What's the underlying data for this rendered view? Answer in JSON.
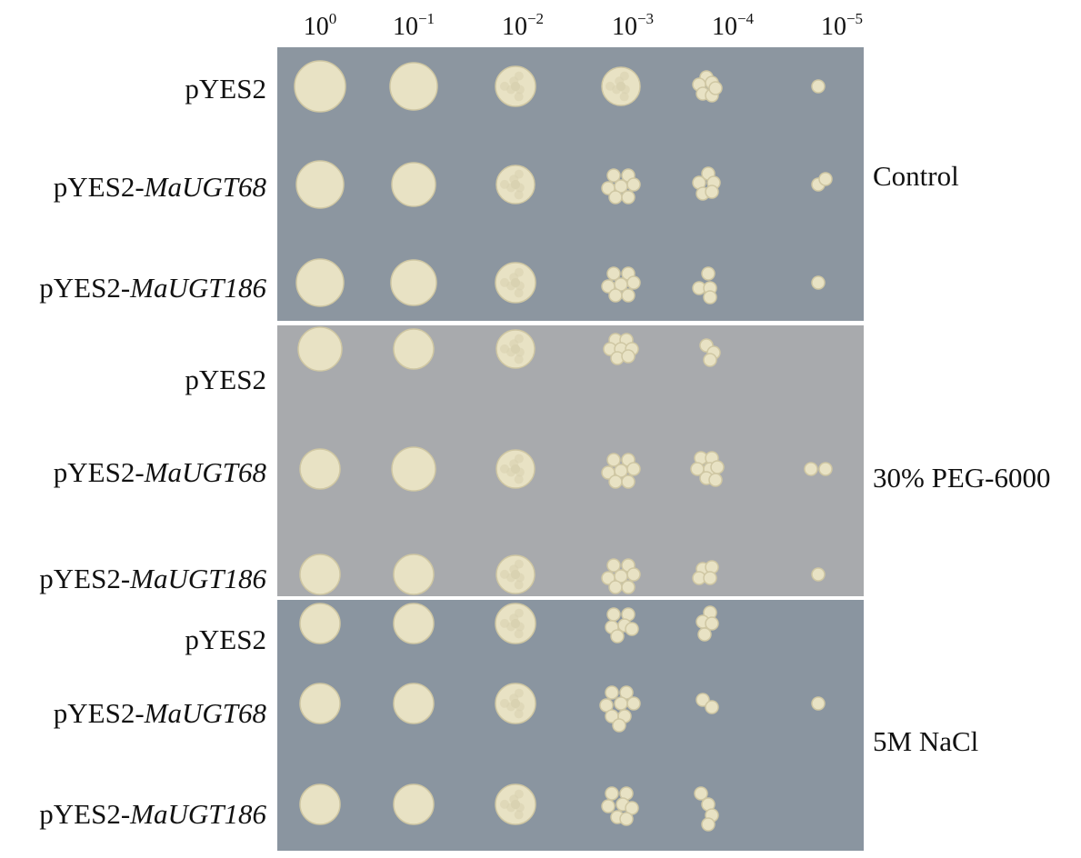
{
  "dilutions": [
    {
      "base": "10",
      "exp": "0"
    },
    {
      "base": "10",
      "exp": "−1"
    },
    {
      "base": "10",
      "exp": "−2"
    },
    {
      "base": "10",
      "exp": "−3"
    },
    {
      "base": "10",
      "exp": "−4"
    },
    {
      "base": "10",
      "exp": "−5"
    }
  ],
  "panels": [
    {
      "condition": "Control",
      "plate_color": "#8c96a0",
      "rows": [
        {
          "prefix": "pYES2",
          "gene": ""
        },
        {
          "prefix": "pYES2-",
          "gene": "MaUGT68"
        },
        {
          "prefix": "pYES2-",
          "gene": "MaUGT186"
        }
      ]
    },
    {
      "condition": "30% PEG-6000",
      "plate_color": "#a8aaad",
      "rows": [
        {
          "prefix": "pYES2",
          "gene": ""
        },
        {
          "prefix": "pYES2-",
          "gene": "MaUGT68"
        },
        {
          "prefix": "pYES2-",
          "gene": "MaUGT186"
        }
      ]
    },
    {
      "condition": "5M NaCl",
      "plate_color": "#8a95a0",
      "rows": [
        {
          "prefix": "pYES2",
          "gene": ""
        },
        {
          "prefix": "pYES2-",
          "gene": "MaUGT68"
        },
        {
          "prefix": "pYES2-",
          "gene": "MaUGT186"
        }
      ]
    }
  ],
  "colony_color": "#e8e2c4"
}
